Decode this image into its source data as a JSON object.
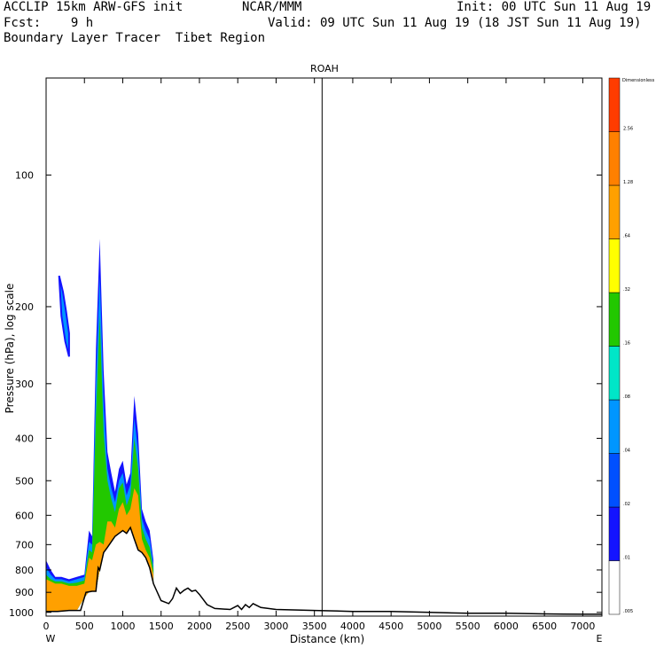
{
  "header": {
    "line1_left": "ACCLIP 15km ARW-GFS init",
    "line1_mid": "NCAR/MMM",
    "line1_right": "Init: 00 UTC Sun 11 Aug 19",
    "line2_left": "Fcst:    9 h",
    "line2_right": "Valid: 09 UTC Sun 11 Aug 19 (18 JST Sun 11 Aug 19)",
    "line3": "Boundary Layer Tracer  Tibet Region"
  },
  "chart_data": {
    "type": "area",
    "title": "",
    "marker_label": "ROAH",
    "marker_x": 3600,
    "xlabel": "Distance (km)",
    "ylabel": "Pressure (hPa), log scale",
    "x_left_label": "W",
    "x_right_label": "E",
    "xlim": [
      0,
      7250
    ],
    "ylim": [
      1020,
      60
    ],
    "y_scale": "log",
    "x_ticks": [
      0,
      500,
      1000,
      1500,
      2000,
      2500,
      3000,
      3500,
      4000,
      4500,
      5000,
      5500,
      6000,
      6500,
      7000
    ],
    "y_ticks": [
      100,
      200,
      300,
      400,
      500,
      600,
      700,
      800,
      900,
      1000
    ],
    "colorbar": {
      "title": "Dimensionless",
      "levels": [
        ".005",
        ".01",
        ".02",
        ".04",
        ".08",
        ".16",
        ".32",
        ".64",
        "1.28",
        "2.56"
      ],
      "colors": [
        "#ffffff",
        "#1414ff",
        "#0050ff",
        "#0096ff",
        "#00e6c8",
        "#22c800",
        "#ffff00",
        "#ffa000",
        "#ff8000",
        "#ff3c00"
      ]
    },
    "terrain": {
      "x": [
        0,
        150,
        300,
        450,
        520,
        600,
        650,
        680,
        700,
        750,
        800,
        900,
        950,
        1000,
        1050,
        1100,
        1150,
        1200,
        1250,
        1300,
        1350,
        1400,
        1500,
        1600,
        1650,
        1700,
        1750,
        1800,
        1850,
        1900,
        1950,
        2000,
        2100,
        2200,
        2400,
        2500,
        2550,
        2600,
        2650,
        2700,
        2750,
        2800,
        2900,
        3000,
        3500,
        4000,
        4500,
        5000,
        5500,
        6000,
        6500,
        7000,
        7250
      ],
      "pressure": [
        995,
        995,
        990,
        990,
        900,
        895,
        895,
        790,
        800,
        730,
        710,
        670,
        660,
        650,
        660,
        640,
        680,
        720,
        730,
        750,
        790,
        860,
        940,
        955,
        930,
        880,
        905,
        890,
        880,
        895,
        890,
        910,
        960,
        980,
        985,
        965,
        985,
        960,
        975,
        955,
        965,
        975,
        980,
        985,
        990,
        995,
        995,
        1000,
        1005,
        1005,
        1008,
        1010,
        1010
      ]
    },
    "tracer_fields": [
      {
        "level": ".01",
        "x": [
          0,
          60,
          120,
          200,
          300,
          400,
          500,
          560,
          600,
          650,
          700,
          750,
          800,
          850,
          900,
          950,
          1000,
          1050,
          1100,
          1150,
          1200,
          1250,
          1300,
          1350,
          1400
        ],
        "pressure_top": [
          760,
          800,
          830,
          830,
          840,
          830,
          820,
          650,
          670,
          250,
          140,
          280,
          430,
          480,
          530,
          470,
          450,
          510,
          480,
          320,
          390,
          580,
          620,
          650,
          760
        ]
      },
      {
        "level": ".04",
        "x": [
          0,
          60,
          120,
          200,
          300,
          400,
          500,
          560,
          600,
          650,
          700,
          750,
          800,
          850,
          900,
          950,
          1000,
          1050,
          1100,
          1150,
          1200,
          1250,
          1300,
          1350,
          1400
        ],
        "pressure_top": [
          790,
          820,
          840,
          840,
          850,
          840,
          830,
          690,
          700,
          300,
          170,
          330,
          470,
          520,
          560,
          500,
          480,
          540,
          510,
          360,
          430,
          610,
          650,
          680,
          780
        ]
      },
      {
        "level": ".16",
        "x": [
          0,
          60,
          120,
          200,
          300,
          400,
          500,
          560,
          600,
          650,
          700,
          750,
          800,
          850,
          900,
          950,
          1000,
          1050,
          1100,
          1150,
          1200,
          1250,
          1300,
          1350,
          1400
        ],
        "pressure_top": [
          820,
          840,
          850,
          850,
          860,
          855,
          845,
          720,
          730,
          360,
          210,
          390,
          500,
          550,
          590,
          520,
          505,
          570,
          540,
          400,
          470,
          640,
          680,
          710,
          800
        ]
      },
      {
        "level": ".64",
        "x": [
          0,
          60,
          120,
          200,
          300,
          400,
          500,
          560,
          600,
          650,
          700,
          750,
          800,
          850,
          900,
          950,
          1000,
          1050,
          1100,
          1150,
          1200,
          1250,
          1300,
          1350,
          1400
        ],
        "pressure_top": [
          840,
          850,
          860,
          860,
          870,
          870,
          860,
          750,
          760,
          700,
          690,
          700,
          620,
          620,
          640,
          580,
          560,
          600,
          580,
          520,
          540,
          680,
          720,
          750,
          820
        ]
      }
    ],
    "upper_plume": {
      "level": ".01",
      "x": [
        170,
        220,
        260,
        300,
        300,
        250,
        200,
        170
      ],
      "pressure": [
        170,
        185,
        205,
        230,
        260,
        240,
        210,
        170
      ]
    }
  }
}
